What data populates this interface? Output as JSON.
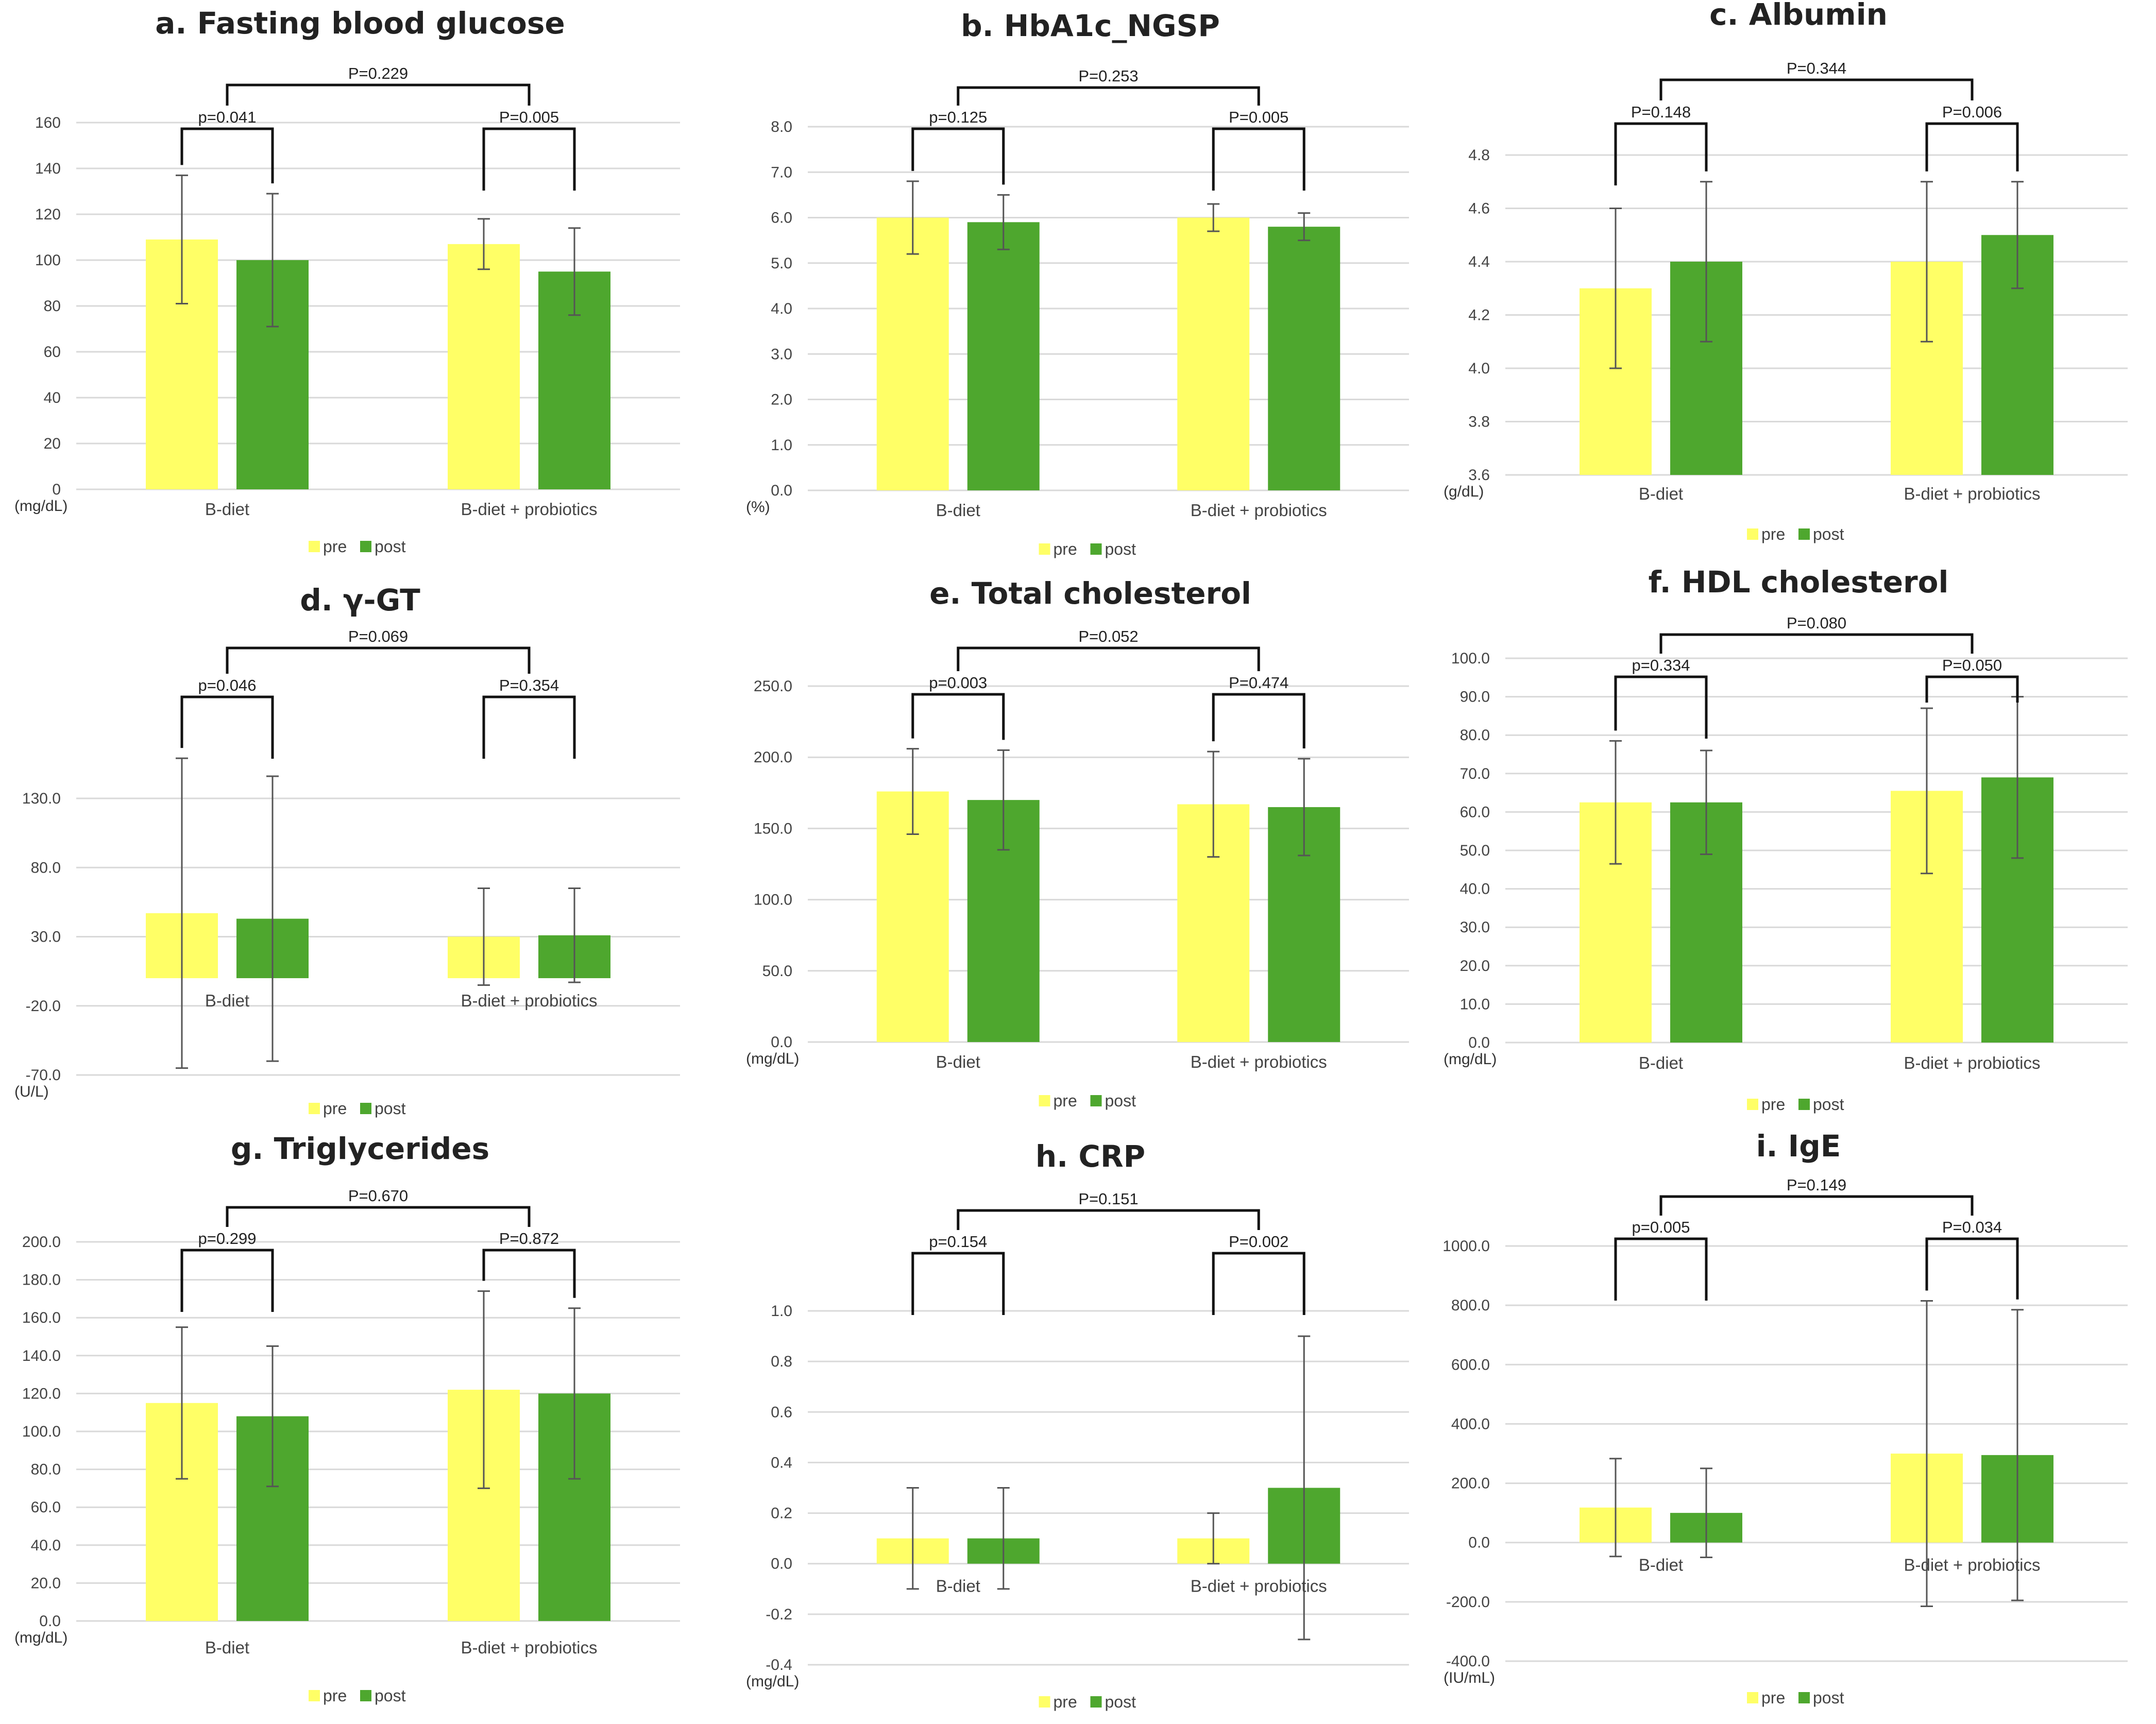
{
  "colors": {
    "pre": "#ffff66",
    "post": "#4ea72e"
  },
  "legend": {
    "pre": "pre",
    "post": "post"
  },
  "chart_data": [
    {
      "type": "bar",
      "title": "a. Fasting blood glucose",
      "unit": "(mg/dL)",
      "categories": [
        "B-diet",
        "B-diet + probiotics"
      ],
      "ylim": [
        0,
        160
      ],
      "ticks": [
        0,
        20,
        40,
        60,
        80,
        100,
        120,
        140,
        160
      ],
      "decimals": 0,
      "series": [
        {
          "name": "pre",
          "values": [
            109,
            107
          ],
          "errors": [
            28,
            11
          ]
        },
        {
          "name": "post",
          "values": [
            100,
            95
          ],
          "errors": [
            29,
            19
          ]
        }
      ],
      "comparisons": {
        "within": [
          "p=0.041",
          "P=0.005"
        ],
        "between": "P=0.229"
      }
    },
    {
      "type": "bar",
      "title": "b. HbA1c_NGSP",
      "unit": "(%)",
      "categories": [
        "B-diet",
        "B-diet + probiotics"
      ],
      "ylim": [
        0,
        8
      ],
      "ticks": [
        0,
        1,
        2,
        3,
        4,
        5,
        6,
        7,
        8
      ],
      "decimals": 1,
      "series": [
        {
          "name": "pre",
          "values": [
            6.0,
            6.0
          ],
          "errors": [
            0.8,
            0.3
          ]
        },
        {
          "name": "post",
          "values": [
            5.9,
            5.8
          ],
          "errors": [
            0.6,
            0.3
          ]
        }
      ],
      "comparisons": {
        "within": [
          "p=0.125",
          "P=0.005"
        ],
        "between": "P=0.253"
      }
    },
    {
      "type": "bar",
      "title": "c. Albumin",
      "unit": "(g/dL)",
      "categories": [
        "B-diet",
        "B-diet + probiotics"
      ],
      "ylim": [
        3.6,
        4.8
      ],
      "ticks": [
        3.6,
        3.8,
        4.0,
        4.2,
        4.4,
        4.6,
        4.8
      ],
      "decimals": 1,
      "series": [
        {
          "name": "pre",
          "values": [
            4.3,
            4.4
          ],
          "errors": [
            0.3,
            0.3
          ]
        },
        {
          "name": "post",
          "values": [
            4.4,
            4.5
          ],
          "errors": [
            0.3,
            0.2
          ]
        }
      ],
      "comparisons": {
        "within": [
          "P=0.148",
          "P=0.006"
        ],
        "between": "P=0.344"
      }
    },
    {
      "type": "bar",
      "title": "d. γ-GT",
      "unit": "(U/L)",
      "categories": [
        "B-diet",
        "B-diet + probiotics"
      ],
      "ylim": [
        -70,
        130
      ],
      "ticks": [
        -70,
        -20,
        30,
        80,
        130
      ],
      "decimals": 1,
      "series": [
        {
          "name": "pre",
          "values": [
            47,
            30
          ],
          "errors": [
            112,
            35
          ]
        },
        {
          "name": "post",
          "values": [
            43,
            31
          ],
          "errors": [
            103,
            34
          ]
        }
      ],
      "comparisons": {
        "within": [
          "p=0.046",
          "P=0.354"
        ],
        "between": "P=0.069"
      }
    },
    {
      "type": "bar",
      "title": "e. Total cholesterol",
      "unit": "(mg/dL)",
      "categories": [
        "B-diet",
        "B-diet + probiotics"
      ],
      "ylim": [
        0,
        250
      ],
      "ticks": [
        0,
        50,
        100,
        150,
        200,
        250
      ],
      "decimals": 1,
      "series": [
        {
          "name": "pre",
          "values": [
            176,
            167
          ],
          "errors": [
            30,
            37
          ]
        },
        {
          "name": "post",
          "values": [
            170,
            165
          ],
          "errors": [
            35,
            34
          ]
        }
      ],
      "comparisons": {
        "within": [
          "p=0.003",
          "P=0.474"
        ],
        "between": "P=0.052"
      }
    },
    {
      "type": "bar",
      "title": "f. HDL cholesterol",
      "unit": "(mg/dL)",
      "categories": [
        "B-diet",
        "B-diet + probiotics"
      ],
      "ylim": [
        0,
        100
      ],
      "ticks": [
        0,
        10,
        20,
        30,
        40,
        50,
        60,
        70,
        80,
        90,
        100
      ],
      "decimals": 1,
      "series": [
        {
          "name": "pre",
          "values": [
            62.5,
            65.5
          ],
          "errors": [
            16,
            21.5
          ]
        },
        {
          "name": "post",
          "values": [
            62.5,
            69
          ],
          "errors": [
            13.5,
            21
          ]
        }
      ],
      "comparisons": {
        "within": [
          "p=0.334",
          "P=0.050"
        ],
        "between": "P=0.080"
      }
    },
    {
      "type": "bar",
      "title": "g. Triglycerides",
      "unit": "(mg/dL)",
      "categories": [
        "B-diet",
        "B-diet + probiotics"
      ],
      "ylim": [
        0,
        200
      ],
      "ticks": [
        0,
        20,
        40,
        60,
        80,
        100,
        120,
        140,
        160,
        180,
        200
      ],
      "decimals": 1,
      "series": [
        {
          "name": "pre",
          "values": [
            115,
            122
          ],
          "errors": [
            40,
            52
          ]
        },
        {
          "name": "post",
          "values": [
            108,
            120
          ],
          "errors": [
            37,
            45
          ]
        }
      ],
      "comparisons": {
        "within": [
          "p=0.299",
          "P=0.872"
        ],
        "between": "P=0.670"
      }
    },
    {
      "type": "bar",
      "title": "h. CRP",
      "unit": "(mg/dL)",
      "categories": [
        "B-diet",
        "B-diet + probiotics"
      ],
      "ylim": [
        -0.4,
        1.0
      ],
      "ticks": [
        -0.4,
        -0.2,
        0,
        0.2,
        0.4,
        0.6,
        0.8,
        1.0
      ],
      "decimals": 1,
      "series": [
        {
          "name": "pre",
          "values": [
            0.1,
            0.1
          ],
          "errors": [
            0.2,
            0.1
          ]
        },
        {
          "name": "post",
          "values": [
            0.1,
            0.3
          ],
          "errors": [
            0.2,
            0.6
          ]
        }
      ],
      "comparisons": {
        "within": [
          "p=0.154",
          "P=0.002"
        ],
        "between": "P=0.151"
      }
    },
    {
      "type": "bar",
      "title": "i. IgE",
      "unit": "(IU/mL)",
      "categories": [
        "B-diet",
        "B-diet + probiotics"
      ],
      "ylim": [
        -400,
        1000
      ],
      "ticks": [
        -400,
        -200,
        0,
        200,
        400,
        600,
        800,
        1000
      ],
      "decimals": 1,
      "series": [
        {
          "name": "pre",
          "values": [
            118,
            300
          ],
          "errors": [
            165,
            515
          ]
        },
        {
          "name": "post",
          "values": [
            100,
            295
          ],
          "errors": [
            150,
            490
          ]
        }
      ],
      "comparisons": {
        "within": [
          "p=0.005",
          "P=0.034"
        ],
        "between": "P=0.149"
      }
    }
  ]
}
